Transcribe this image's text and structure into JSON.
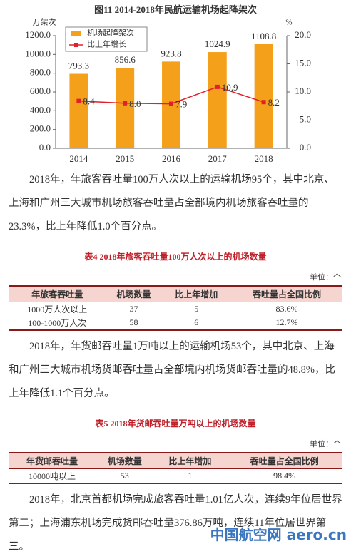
{
  "chart_data": {
    "type": "bar-line",
    "title": "图11 2014-2018年民航运输机场起降架次",
    "y_label": "万架次",
    "y2_label": "%",
    "categories": [
      "2014",
      "2015",
      "2016",
      "2017",
      "2018"
    ],
    "series": [
      {
        "name": "机场起降架次",
        "type": "bar",
        "color": "#f5a01a",
        "values": [
          793.3,
          856.6,
          923.8,
          1024.9,
          1108.8
        ]
      },
      {
        "name": "比上年增长",
        "type": "line",
        "axis": "y2",
        "color": "#e0202a",
        "values": [
          8.4,
          8.0,
          7.9,
          10.9,
          8.2
        ],
        "value_labels": [
          "8.4",
          "8.0",
          "7.9",
          "10.9",
          "8.2"
        ]
      }
    ],
    "ylim": [
      0,
      1200
    ],
    "yticks": [
      {
        "value": 0,
        "label": "0.0"
      },
      {
        "value": 200,
        "label": "200.0"
      },
      {
        "value": 400,
        "label": "400.0"
      },
      {
        "value": 600,
        "label": "600.0"
      },
      {
        "value": 800,
        "label": "800.0"
      },
      {
        "value": 1000,
        "label": "1000.0"
      },
      {
        "value": 1200,
        "label": "1200.0"
      }
    ],
    "y2lim": [
      0,
      20
    ],
    "y2ticks": [
      {
        "value": 0,
        "label": "0.0"
      },
      {
        "value": 5,
        "label": "5.0"
      },
      {
        "value": 10,
        "label": "10.0"
      },
      {
        "value": 15,
        "label": "15.0"
      },
      {
        "value": 20,
        "label": "20.0"
      }
    ],
    "legend": "upper left"
  },
  "paragraphs": [
    "2018年，年旅客吞吐量100万人次以上的运输机场95个，其中北京、上海和广州三大城市机场旅客吞吐量占全部境内机场旅客吞吐量的23.3%，比上年降低1.0个百分点。",
    "2018年，年货邮吞吐量1万吨以上的运输机场53个，其中北京、上海和广州三大城市机场货邮吞吐量占全部境内机场货邮吞吐量的48.8%，比上年降低1.1个百分点。",
    "2018年，北京首都机场完成旅客吞吐量1.01亿人次，连续9年位居世界第二；上海浦东机场完成货邮吞吐量376.86万吨，连续11年位居世界第三。"
  ],
  "tables": [
    {
      "title": "表4 2018年旅客吞吐量100万人次以上的机场数量",
      "unit": "单位：个",
      "header": [
        "年旅客吞吐量",
        "机场数量",
        "比上年增加",
        "吞吐量占全国比例"
      ],
      "rows": [
        [
          "1000万人次以上",
          "37",
          "5",
          "83.6%"
        ],
        [
          "100-1000万人次",
          "58",
          "6",
          "12.7%"
        ]
      ]
    },
    {
      "title": "表5 2018年货邮吞吐量万吨以上的机场数量",
      "unit": "单位：个",
      "header": [
        "年货邮吞吐量",
        "机场数量",
        "比上年增加",
        "吞吐量占全国比例"
      ],
      "rows": [
        [
          "10000吨以上",
          "53",
          "1",
          "98.4%"
        ]
      ]
    }
  ],
  "watermark": "中国航空网 aero.cn"
}
